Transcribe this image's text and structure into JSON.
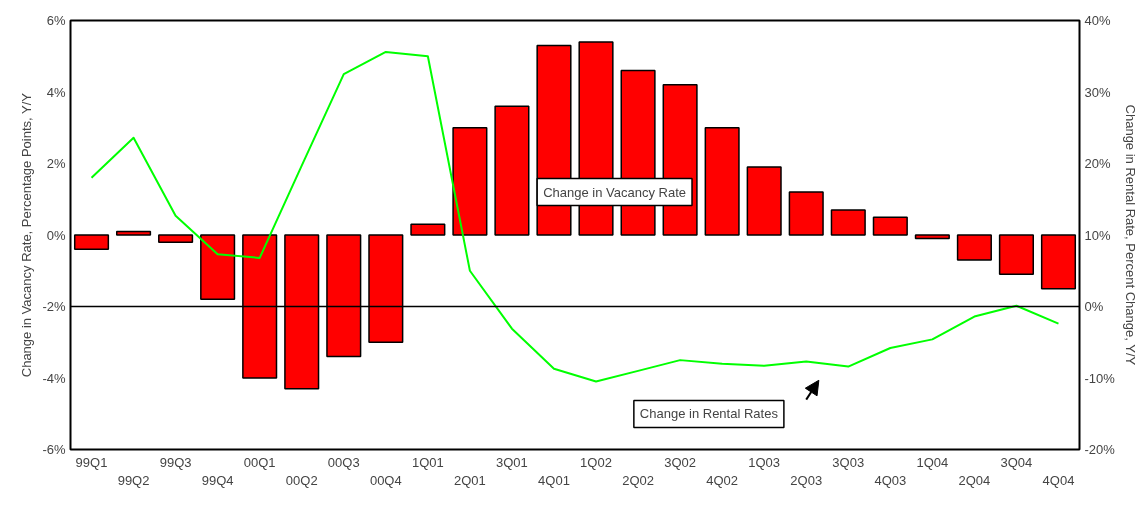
{
  "chart_data": {
    "type": "bar",
    "categories": [
      "99Q1",
      "99Q2",
      "99Q3",
      "99Q4",
      "00Q1",
      "00Q2",
      "00Q3",
      "00Q4",
      "1Q01",
      "2Q01",
      "3Q01",
      "4Q01",
      "1Q02",
      "2Q02",
      "3Q02",
      "4Q02",
      "1Q03",
      "2Q03",
      "3Q03",
      "4Q03",
      "1Q04",
      "2Q04",
      "3Q04",
      "4Q04"
    ],
    "ylabel": "Change in Vacancy Rate, Percentage Points, Y/Y",
    "y2label": "Change in Rental Rate, Percent Change, Y/Y",
    "ylim": [
      -6,
      6
    ],
    "yticks": [
      {
        "value": -6,
        "label": "-6%"
      },
      {
        "value": -4,
        "label": "-4%"
      },
      {
        "value": -2,
        "label": "-2%"
      },
      {
        "value": 0,
        "label": "0%"
      },
      {
        "value": 2,
        "label": "2%"
      },
      {
        "value": 4,
        "label": "4%"
      },
      {
        "value": 6,
        "label": "6%"
      }
    ],
    "y2lim": [
      -20,
      40
    ],
    "y2ticks": [
      {
        "value": -20,
        "label": "-20%"
      },
      {
        "value": -10,
        "label": "-10%"
      },
      {
        "value": 0,
        "label": "0%"
      },
      {
        "value": 10,
        "label": "10%"
      },
      {
        "value": 20,
        "label": "20%"
      },
      {
        "value": 30,
        "label": "30%"
      },
      {
        "value": 40,
        "label": "40%"
      }
    ],
    "series": [
      {
        "name": "Change in Vacancy Rate",
        "color": "#ff0000",
        "values": [
          -0.4,
          0.1,
          -0.2,
          -1.8,
          -4.0,
          -4.3,
          -3.4,
          -3.0,
          0.3,
          3.0,
          3.6,
          5.3,
          5.4,
          4.6,
          4.2,
          3.0,
          1.9,
          1.2,
          0.7,
          0.5,
          -0.1,
          -0.7,
          -1.1,
          -1.5
        ]
      },
      {
        "name": "Change in Rental Rates",
        "type": "line",
        "axis": "y2",
        "color": "#00ff00",
        "values": [
          18,
          23.6,
          12.7,
          7.3,
          6.8,
          19.7,
          32.5,
          35.6,
          35,
          5,
          -3.1,
          -8.7,
          -10.5,
          -9,
          -7.5,
          -8,
          -8.3,
          -7.7,
          -8.4,
          -5.8,
          -4.6,
          -1.4,
          0.1,
          -2.4
        ]
      }
    ],
    "ref_lines": [
      {
        "axis": "y2",
        "value": 0,
        "color": "#000000"
      }
    ],
    "grid": false
  }
}
